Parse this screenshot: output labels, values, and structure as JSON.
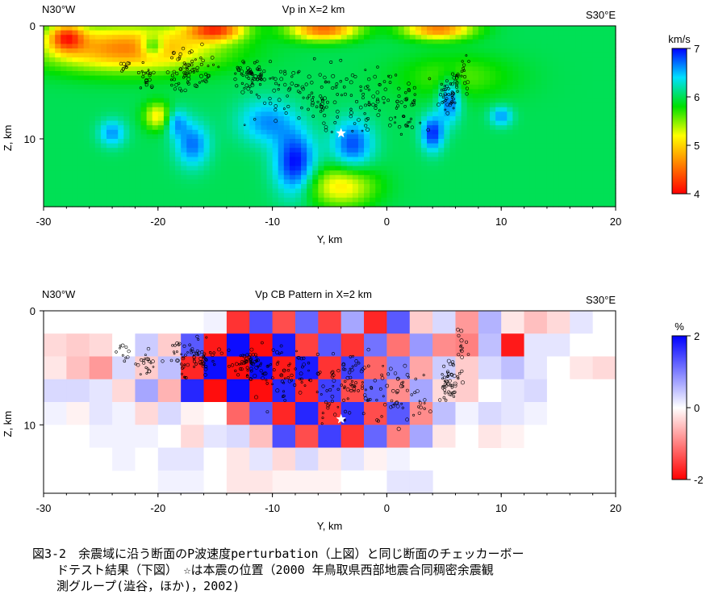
{
  "chart_data": [
    {
      "type": "heatmap",
      "title": "Vp in X=2 km",
      "left_label": "N30°W",
      "right_label": "S30°E",
      "xlabel": "Y, km",
      "ylabel": "Z, km",
      "xlim": [
        -30,
        20
      ],
      "ylim": [
        0,
        16
      ],
      "x_ticks": [
        "-30",
        "-20",
        "-10",
        "0",
        "10",
        "20"
      ],
      "y_ticks": [
        "0",
        "10"
      ],
      "colorbar": {
        "label": "km/s",
        "range": [
          4,
          7
        ],
        "ticks": [
          "7",
          "6",
          "5",
          "4"
        ],
        "stops": [
          "#ff0000",
          "#ff7f00",
          "#ffff00",
          "#00e000",
          "#00e0ff",
          "#0000ff"
        ]
      },
      "background_value": 6.0,
      "anomalies": [
        {
          "y": -22.5,
          "z": 2.0,
          "value": 4.6,
          "ry": 7.5,
          "rz": 2.0
        },
        {
          "y": -15,
          "z": 0.3,
          "value": 4.4,
          "ry": 2.5,
          "rz": 1.0
        },
        {
          "y": -5.5,
          "z": 0.3,
          "value": 4.5,
          "ry": 3.0,
          "rz": 1.0
        },
        {
          "y": 4.5,
          "z": 0.3,
          "value": 4.6,
          "ry": 3.0,
          "rz": 0.9
        },
        {
          "y": -28,
          "z": 1.0,
          "value": 4.7,
          "ry": 1.5,
          "rz": 1.2
        },
        {
          "y": -4,
          "z": 14.2,
          "value": 5.1,
          "ry": 3.0,
          "rz": 1.8
        },
        {
          "y": -20,
          "z": 8.0,
          "value": 5.1,
          "ry": 1.2,
          "rz": 1.2
        },
        {
          "y": 6,
          "z": 4.5,
          "value": 5.6,
          "ry": 5.0,
          "rz": 2.0
        },
        {
          "y": -20.5,
          "z": 1.8,
          "value": 6.9,
          "ry": 1.0,
          "rz": 0.9
        },
        {
          "y": -8,
          "z": 12.2,
          "value": 7.0,
          "ry": 1.8,
          "rz": 2.8
        },
        {
          "y": -3,
          "z": 10.5,
          "value": 6.8,
          "ry": 1.8,
          "rz": 2.2
        },
        {
          "y": 4,
          "z": 9.5,
          "value": 6.9,
          "ry": 1.0,
          "rz": 1.6
        },
        {
          "y": 5.5,
          "z": 6.5,
          "value": 6.8,
          "ry": 1.0,
          "rz": 2.0
        },
        {
          "y": -17,
          "z": 10.5,
          "value": 6.7,
          "ry": 1.5,
          "rz": 2.0
        },
        {
          "y": -24,
          "z": 9.5,
          "value": 6.6,
          "ry": 1.2,
          "rz": 1.2
        },
        {
          "y": 10,
          "z": 8.0,
          "value": 6.6,
          "ry": 1.0,
          "rz": 0.9
        },
        {
          "y": -10.5,
          "z": 8.5,
          "value": 6.6,
          "ry": 2.5,
          "rz": 2.0
        },
        {
          "y": -18.5,
          "z": 8.5,
          "value": 6.6,
          "ry": 1.0,
          "rz": 1.2
        }
      ],
      "hypocenter": {
        "y": -4,
        "z": 9.5
      }
    },
    {
      "type": "heatmap",
      "title": "Vp CB Pattern in X=2 km",
      "left_label": "N30°W",
      "right_label": "S30°E",
      "xlabel": "Y, km",
      "ylabel": "Z, km",
      "xlim": [
        -30,
        20
      ],
      "ylim": [
        0,
        16
      ],
      "x_ticks": [
        "-30",
        "-20",
        "-10",
        "0",
        "10",
        "20"
      ],
      "y_ticks": [
        "0",
        "10"
      ],
      "colorbar": {
        "label": "%",
        "range": [
          -2,
          2
        ],
        "ticks": [
          "2",
          "0",
          "-2"
        ],
        "stops": [
          "#ff0000",
          "#ffffff",
          "#0000ff"
        ]
      },
      "grid": {
        "y0": -30,
        "dy": 2,
        "z0": 0,
        "dz": 2,
        "values": [
          [
            null,
            null,
            null,
            null,
            null,
            null,
            null,
            0.1,
            -1.6,
            1.4,
            -1.4,
            1.2,
            -1.5,
            0.7,
            -1.7,
            1.3,
            -0.4,
            0.3,
            -0.8,
            0.6,
            -0.2,
            -0.5,
            -0.3,
            0.2,
            0.0
          ],
          [
            -0.3,
            -0.4,
            -0.3,
            0.0,
            0.4,
            -0.4,
            1.3,
            -1.8,
            1.9,
            -1.9,
            1.8,
            -1.5,
            1.3,
            -1.6,
            1.1,
            -1.1,
            0.8,
            -0.9,
            -1.0,
            0.5,
            -1.8,
            0.2,
            0.2,
            0.0,
            0.0
          ],
          [
            -0.2,
            -0.5,
            -0.8,
            0.3,
            -0.4,
            0.5,
            -1.7,
            1.9,
            -1.9,
            1.9,
            -1.8,
            1.8,
            -1.6,
            1.5,
            -1.2,
            1.0,
            -0.7,
            0.4,
            -0.4,
            0.3,
            0.5,
            0.2,
            0.0,
            -0.2,
            -0.3
          ],
          [
            0.3,
            0.3,
            0.2,
            -0.3,
            0.7,
            -0.6,
            1.7,
            -1.9,
            1.9,
            -1.9,
            1.7,
            -1.7,
            1.5,
            -1.4,
            1.2,
            -0.9,
            0.7,
            -0.3,
            -0.4,
            0.0,
            0.2,
            0.3,
            0.0,
            0.0,
            0.0
          ],
          [
            0.1,
            -0.1,
            0.2,
            0.1,
            -0.3,
            0.3,
            -0.1,
            0.0,
            -1.2,
            1.3,
            -1.7,
            1.7,
            -1.6,
            1.6,
            -1.4,
            1.3,
            -0.9,
            0.5,
            0.1,
            0.3,
            0.2,
            0.1,
            0.0,
            0.0,
            0.0
          ],
          [
            0.0,
            0.0,
            0.1,
            0.1,
            0.1,
            0.0,
            -0.3,
            0.2,
            0.3,
            -0.5,
            1.4,
            -1.4,
            1.5,
            -1.6,
            1.2,
            -1.0,
            0.7,
            -0.2,
            0.0,
            -0.2,
            -0.1,
            0.0,
            0.0,
            0.0,
            0.0
          ],
          [
            null,
            0.0,
            0.0,
            0.1,
            0.0,
            0.2,
            0.2,
            0.0,
            -0.2,
            0.2,
            -0.3,
            0.3,
            -0.2,
            0.2,
            -0.1,
            0.1,
            0.0,
            0.0,
            null,
            null,
            null,
            null,
            null,
            null,
            null
          ],
          [
            null,
            null,
            null,
            null,
            null,
            0.1,
            0.1,
            0.0,
            -0.2,
            -0.2,
            -0.1,
            -0.1,
            -0.1,
            0.0,
            0.0,
            0.2,
            0.2,
            null,
            null,
            null,
            null,
            null,
            null,
            null,
            null
          ]
        ]
      },
      "hypocenter": {
        "y": -4,
        "z": 9.5
      }
    }
  ],
  "caption": "図3-2　余震域に沿う断面のP波速度perturbation（上図）と同じ断面のチェッカーボー\n　　ドテスト結果（下図）　☆は本震の位置（2000 年鳥取県西部地震合同稠密余震観\n　　測グループ(澁谷，ほか)，2002)",
  "colors": {
    "star": "#ffffff",
    "event_marker": "#000000"
  }
}
